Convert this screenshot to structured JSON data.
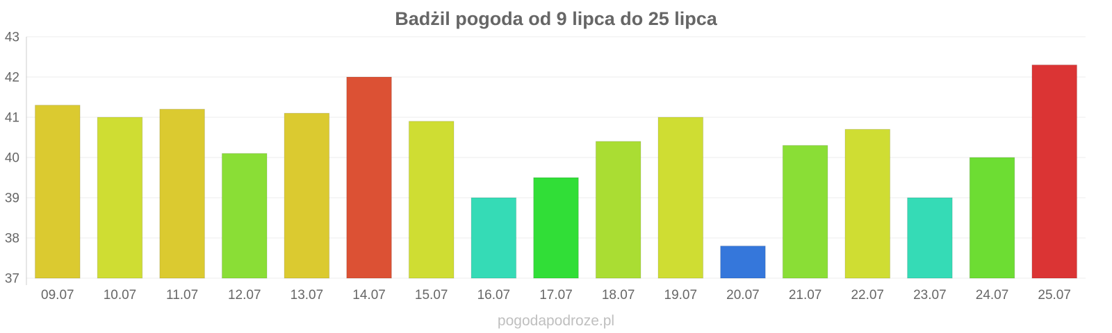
{
  "chart_data": {
    "type": "bar",
    "title": "Badżil pogoda od 9 lipca do 25 lipca",
    "xlabel": "",
    "ylabel": "",
    "categories": [
      "09.07",
      "10.07",
      "11.07",
      "12.07",
      "13.07",
      "14.07",
      "15.07",
      "16.07",
      "17.07",
      "18.07",
      "19.07",
      "20.07",
      "21.07",
      "22.07",
      "23.07",
      "24.07",
      "25.07"
    ],
    "values": [
      41.3,
      41.0,
      41.2,
      40.1,
      41.1,
      42.0,
      40.9,
      39.0,
      39.5,
      40.4,
      41.0,
      37.8,
      40.3,
      40.7,
      39.0,
      40.0,
      42.3
    ],
    "colors": [
      "#dbca30",
      "#cfdd33",
      "#dbca30",
      "#8ade36",
      "#dbca30",
      "#dc5134",
      "#cfdd33",
      "#35dbb6",
      "#31de37",
      "#aadd33",
      "#cfdd33",
      "#3577db",
      "#8ade36",
      "#cfdd33",
      "#35dbb6",
      "#6ddd33",
      "#db3434"
    ],
    "ylim": [
      37,
      43
    ],
    "yticks": [
      37,
      38,
      39,
      40,
      41,
      42,
      43
    ],
    "grid": true,
    "legend": "none"
  },
  "watermark": "pogodapodroze.pl"
}
